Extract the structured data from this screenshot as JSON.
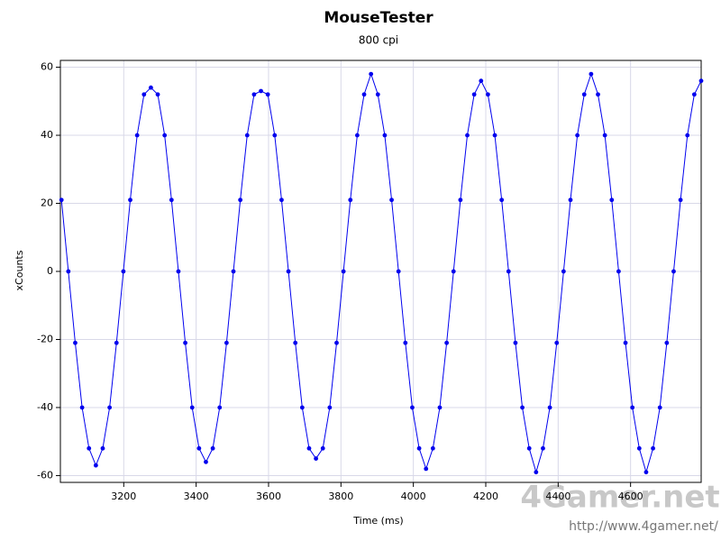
{
  "chart_data": {
    "type": "line",
    "title": "MouseTester",
    "subtitle": "800 cpi",
    "x_label": "Time (ms)",
    "y_label": "xCounts",
    "watermark": "4Gamer.net",
    "watermark_url": "http://www.4gamer.net/",
    "x": [
      3028,
      3047,
      3066,
      3085,
      3104,
      3123,
      3142,
      3161,
      3180,
      3199,
      3218,
      3237,
      3256,
      3275,
      3294,
      3313,
      3332,
      3351,
      3370,
      3389,
      3408,
      3427,
      3446,
      3465,
      3484,
      3503,
      3522,
      3541,
      3560,
      3579,
      3598,
      3617,
      3636,
      3655,
      3674,
      3693,
      3712,
      3731,
      3750,
      3769,
      3788,
      3807,
      3826,
      3845,
      3864,
      3883,
      3902,
      3921,
      3940,
      3959,
      3978,
      3997,
      4016,
      4035,
      4054,
      4073,
      4092,
      4111,
      4130,
      4149,
      4168,
      4187,
      4206,
      4225,
      4244,
      4263,
      4282,
      4301,
      4320,
      4339,
      4358,
      4377,
      4396,
      4415,
      4434,
      4453,
      4472,
      4491,
      4510,
      4529,
      4548,
      4567,
      4586,
      4605,
      4624,
      4643,
      4662,
      4681,
      4700,
      4719,
      4738,
      4757,
      4776,
      4795
    ],
    "series": [
      {
        "color": "#0000ee",
        "values": [
          21,
          0,
          -21,
          -40,
          -52,
          -57,
          -52,
          -40,
          -21,
          0,
          21,
          40,
          52,
          54,
          52,
          40,
          21,
          0,
          -21,
          -40,
          -52,
          -56,
          -52,
          -40,
          -21,
          0,
          21,
          40,
          52,
          53,
          52,
          40,
          21,
          0,
          -21,
          -40,
          -52,
          -55,
          -52,
          -40,
          -21,
          0,
          21,
          40,
          52,
          58,
          52,
          40,
          21,
          0,
          -21,
          -40,
          -52,
          -58,
          -52,
          -40,
          -21,
          0,
          21,
          40,
          52,
          56,
          52,
          40,
          21,
          0,
          -21,
          -40,
          -52,
          -59,
          -52,
          -40,
          -21,
          0,
          21,
          40,
          52,
          58,
          52,
          40,
          21,
          0,
          -21,
          -40,
          -52,
          -59,
          -52,
          -40,
          -21,
          0,
          21,
          40,
          52,
          56
        ]
      }
    ],
    "xlim": [
      3025,
      4795
    ],
    "ylim": [
      -62,
      62
    ],
    "xticks": [
      3200,
      3400,
      3600,
      3800,
      4000,
      4200,
      4400,
      4600
    ],
    "yticks": [
      -60,
      -40,
      -20,
      0,
      20,
      40,
      60
    ],
    "grid": true
  }
}
